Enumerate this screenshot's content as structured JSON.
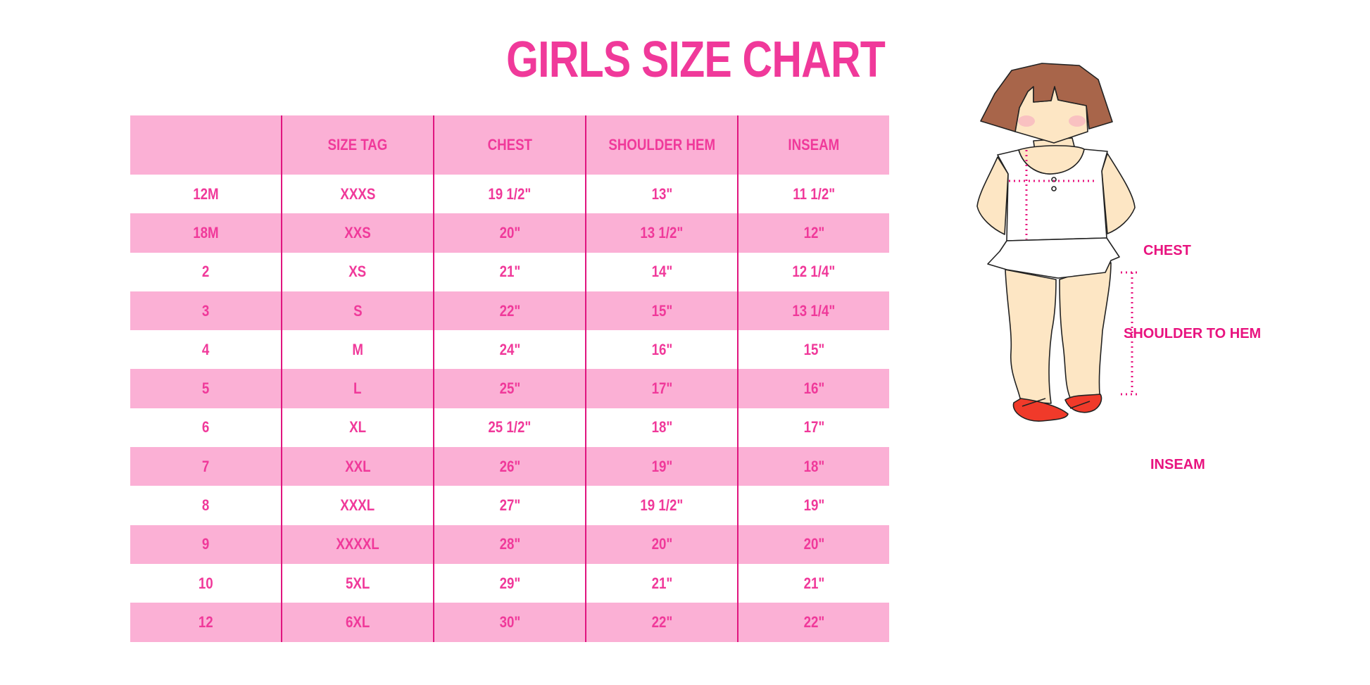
{
  "title": "GIRLS SIZE CHART",
  "table": {
    "headers": [
      "",
      "SIZE TAG",
      "CHEST",
      "SHOULDER HEM",
      "INSEAM"
    ],
    "rows": [
      [
        "12M",
        "XXXS",
        "19 1/2\"",
        "13\"",
        "11 1/2\""
      ],
      [
        "18M",
        "XXS",
        "20\"",
        "13 1/2\"",
        "12\""
      ],
      [
        "2",
        "XS",
        "21\"",
        "14\"",
        "12 1/4\""
      ],
      [
        "3",
        "S",
        "22\"",
        "15\"",
        "13 1/4\""
      ],
      [
        "4",
        "M",
        "24\"",
        "16\"",
        "15\""
      ],
      [
        "5",
        "L",
        "25\"",
        "17\"",
        "16\""
      ],
      [
        "6",
        "XL",
        "25 1/2\"",
        "18\"",
        "17\""
      ],
      [
        "7",
        "XXL",
        "26\"",
        "19\"",
        "18\""
      ],
      [
        "8",
        "XXXL",
        "27\"",
        "19 1/2\"",
        "19\""
      ],
      [
        "9",
        "XXXXL",
        "28\"",
        "20\"",
        "20\""
      ],
      [
        "10",
        "5XL",
        "29\"",
        "21\"",
        "21\""
      ],
      [
        "12",
        "6XL",
        "30\"",
        "22\"",
        "22\""
      ]
    ]
  },
  "figure": {
    "labels": {
      "chest": "CHEST",
      "shoulder_to_hem": "SHOULDER TO HEM",
      "inseam": "INSEAM"
    }
  },
  "colors": {
    "accent": "#f0399a",
    "row_band": "#fbb0d5",
    "divider": "#e0157f",
    "hair": "#a8654a",
    "skin": "#fde6c4",
    "shoe": "#f03a2a"
  }
}
